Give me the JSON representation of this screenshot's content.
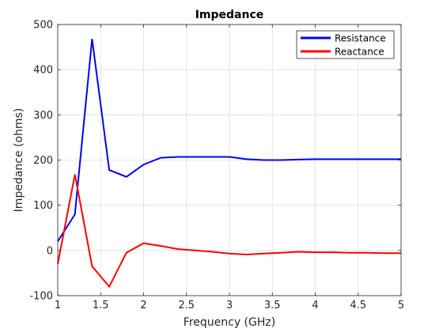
{
  "chart_data": {
    "type": "line",
    "title": "Impedance",
    "xlabel": "Frequency (GHz)",
    "ylabel": "Impedance (ohms)",
    "xlim": [
      1,
      5
    ],
    "ylim": [
      -100,
      500
    ],
    "xticks": [
      1,
      1.5,
      2,
      2.5,
      3,
      3.5,
      4,
      4.5,
      5
    ],
    "xtick_labels": [
      "1",
      "1.5",
      "2",
      "2.5",
      "3",
      "3.5",
      "4",
      "4.5",
      "5"
    ],
    "yticks": [
      -100,
      0,
      100,
      200,
      300,
      400,
      500
    ],
    "ytick_labels": [
      "-100",
      "0",
      "100",
      "200",
      "300",
      "400",
      "500"
    ],
    "grid": true,
    "legend_position": "top-right",
    "x": [
      1.0,
      1.2,
      1.4,
      1.6,
      1.8,
      2.0,
      2.2,
      2.4,
      2.6,
      2.8,
      3.0,
      3.2,
      3.4,
      3.6,
      3.8,
      4.0,
      4.2,
      4.4,
      4.6,
      4.8,
      5.0
    ],
    "series": [
      {
        "name": "Resistance",
        "color": "#0000ff",
        "values": [
          20,
          80,
          468,
          178,
          163,
          190,
          205,
          207,
          207,
          207,
          207,
          202,
          200,
          200,
          201,
          202,
          202,
          202,
          202,
          202,
          202
        ]
      },
      {
        "name": "Reactance",
        "color": "#ff0000",
        "values": [
          -30,
          168,
          -35,
          -80,
          -5,
          16,
          10,
          3,
          0,
          -3,
          -7,
          -9,
          -7,
          -5,
          -3,
          -4,
          -4,
          -5,
          -5,
          -6,
          -6
        ]
      }
    ]
  }
}
